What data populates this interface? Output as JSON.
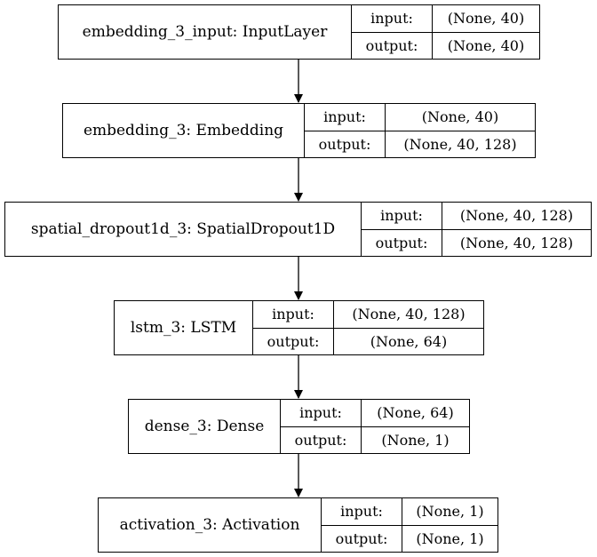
{
  "layers": [
    {
      "name": "embedding_3_input: InputLayer",
      "input_label": "input:",
      "output_label": "output:",
      "input_shape": "(None, 40)",
      "output_shape": "(None, 40)"
    },
    {
      "name": "embedding_3: Embedding",
      "input_label": "input:",
      "output_label": "output:",
      "input_shape": "(None, 40)",
      "output_shape": "(None, 40, 128)"
    },
    {
      "name": "spatial_dropout1d_3: SpatialDropout1D",
      "input_label": "input:",
      "output_label": "output:",
      "input_shape": "(None, 40, 128)",
      "output_shape": "(None, 40, 128)"
    },
    {
      "name": "lstm_3: LSTM",
      "input_label": "input:",
      "output_label": "output:",
      "input_shape": "(None, 40, 128)",
      "output_shape": "(None, 64)"
    },
    {
      "name": "dense_3: Dense",
      "input_label": "input:",
      "output_label": "output:",
      "input_shape": "(None, 64)",
      "output_shape": "(None, 1)"
    },
    {
      "name": "activation_3: Activation",
      "input_label": "input:",
      "output_label": "output:",
      "input_shape": "(None, 1)",
      "output_shape": "(None, 1)"
    }
  ],
  "edges": [
    [
      0,
      1
    ],
    [
      1,
      2
    ],
    [
      2,
      3
    ],
    [
      3,
      4
    ],
    [
      4,
      5
    ]
  ]
}
